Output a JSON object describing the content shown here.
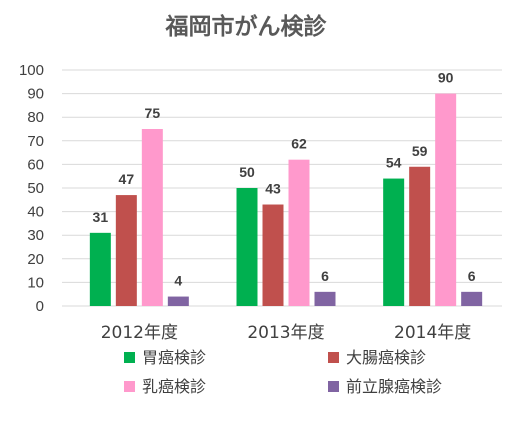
{
  "chart_data": {
    "type": "bar",
    "title": "福岡市がん検診",
    "categories": [
      "2012年度",
      "2013年度",
      "2014年度"
    ],
    "ylim": [
      0,
      100
    ],
    "yticks": [
      0,
      10,
      20,
      30,
      40,
      50,
      60,
      70,
      80,
      90,
      100
    ],
    "grid": true,
    "legend_position": "bottom",
    "series": [
      {
        "name": "胃癌検診",
        "color": "#00b050",
        "values": [
          31,
          50,
          54
        ]
      },
      {
        "name": "大腸癌検診",
        "color": "#c0504d",
        "values": [
          47,
          43,
          59
        ]
      },
      {
        "name": "乳癌検診",
        "color": "#ff99cc",
        "values": [
          75,
          62,
          90
        ]
      },
      {
        "name": "前立腺癌検診",
        "color": "#8064a2",
        "values": [
          4,
          6,
          6
        ]
      }
    ]
  }
}
